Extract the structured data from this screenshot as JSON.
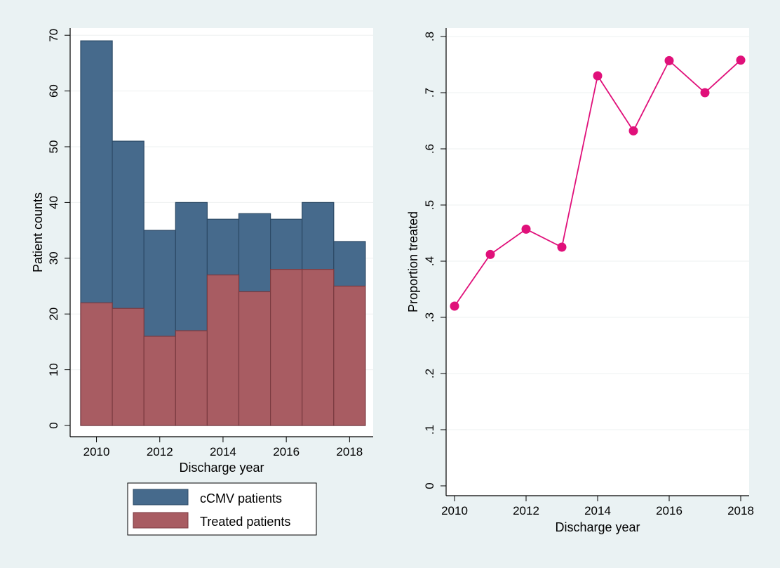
{
  "chart_data": [
    {
      "type": "bar",
      "stacking": "overlay",
      "categories": [
        "2010",
        "2011",
        "2012",
        "2013",
        "2014",
        "2015",
        "2016",
        "2017",
        "2018"
      ],
      "x": [
        2010,
        2011,
        2012,
        2013,
        2014,
        2015,
        2016,
        2017,
        2018
      ],
      "series": [
        {
          "name": "cCMV patients",
          "values": [
            69,
            51,
            35,
            40,
            37,
            38,
            37,
            40,
            33
          ],
          "color": "#466a8c"
        },
        {
          "name": "Treated patients",
          "values": [
            22,
            21,
            16,
            17,
            27,
            24,
            28,
            28,
            25
          ],
          "color": "#a85c62"
        }
      ],
      "title": "",
      "xlabel": "Discharge year",
      "ylabel": "Patient counts",
      "xticks": [
        "2010",
        "2012",
        "2014",
        "2016",
        "2018"
      ],
      "yticks": [
        "0",
        "10",
        "20",
        "30",
        "40",
        "50",
        "60",
        "70"
      ],
      "ylim": [
        0,
        70
      ],
      "grid": true,
      "legend": "bottom"
    },
    {
      "type": "line",
      "x": [
        2010,
        2011,
        2012,
        2013,
        2014,
        2015,
        2016,
        2017,
        2018
      ],
      "series": [
        {
          "values": [
            0.32,
            0.412,
            0.457,
            0.425,
            0.73,
            0.632,
            0.757,
            0.7,
            0.758
          ],
          "color": "#e0107a"
        }
      ],
      "title": "",
      "xlabel": "Discharge year",
      "ylabel": "Proportion treated",
      "xticks": [
        "2010",
        "2012",
        "2014",
        "2016",
        "2018"
      ],
      "yticks": [
        "0",
        ".1",
        ".2",
        ".3",
        ".4",
        ".5",
        ".6",
        ".7",
        ".8"
      ],
      "ylim": [
        0,
        0.8
      ],
      "grid": true,
      "legend": "none"
    }
  ]
}
